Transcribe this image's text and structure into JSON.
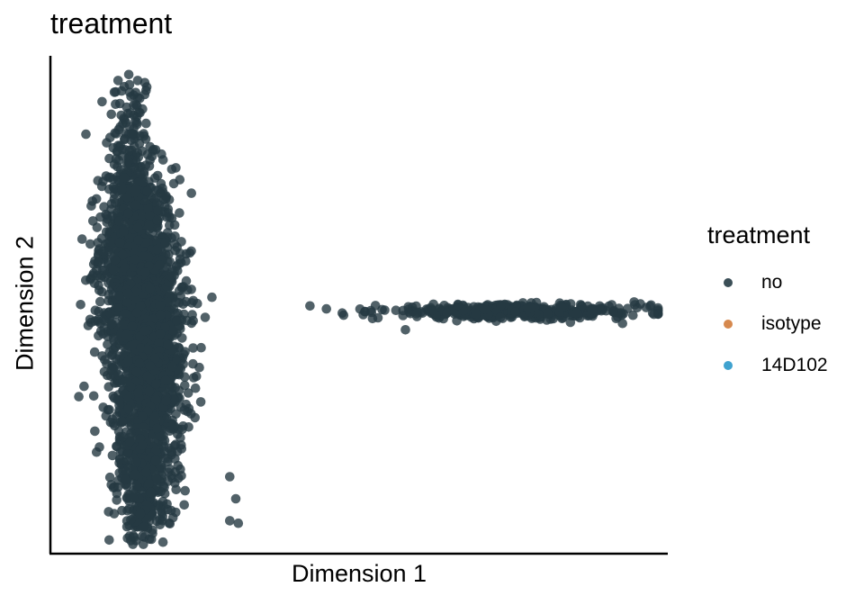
{
  "chart_data": {
    "type": "scatter",
    "title": "treatment",
    "xlabel": "Dimension 1",
    "ylabel": "Dimension 2",
    "xlim": [
      0,
      100
    ],
    "ylim": [
      0,
      100
    ],
    "grid": false,
    "axis_ticks": false,
    "point_color": "#263a42",
    "point_opacity": 0.8,
    "legend": {
      "title": "treatment",
      "placement": "right",
      "entries": [
        {
          "label": "no",
          "color": "#3b4f57"
        },
        {
          "label": "isotype",
          "color": "#d6894e"
        },
        {
          "label": "14D102",
          "color": "#3fa2cf"
        }
      ]
    },
    "series": [
      {
        "name": "no",
        "points": [
          [
            10.5,
            95.7
          ],
          [
            9.9,
            93.3
          ],
          [
            10.8,
            91.0
          ],
          [
            9.4,
            88.8
          ],
          [
            13.0,
            84.7
          ],
          [
            10.6,
            79.4
          ],
          [
            13.8,
            78.0
          ],
          [
            13.4,
            73.4
          ],
          [
            7.6,
            67.8
          ],
          [
            4.6,
            63.3
          ],
          [
            7.2,
            62.6
          ],
          [
            15.6,
            66.1
          ],
          [
            5.2,
            54.9
          ],
          [
            21.2,
            53.6
          ],
          [
            7.6,
            46.1
          ],
          [
            20.7,
            45.0
          ],
          [
            21.2,
            37.8
          ],
          [
            22.0,
            31.9
          ],
          [
            6.7,
            24.1
          ],
          [
            11.3,
            23.0
          ],
          [
            13.3,
            15.2
          ],
          [
            20.4,
            14.5
          ],
          [
            9.9,
            12.7
          ],
          [
            12.6,
            6.0
          ],
          [
            14.8,
            4.5
          ],
          [
            19.2,
            7.9
          ],
          [
            19.0,
            5.2
          ],
          [
            28.8,
            14.8
          ],
          [
            29.8,
            10.3
          ],
          [
            28.8,
            5.8
          ],
          [
            30.2,
            5.3
          ],
          [
            52.2,
            47.1
          ],
          [
            54.2,
            48.8
          ],
          [
            57.2,
            47.7
          ],
          [
            57.6,
            44.8
          ],
          [
            64.4,
            48.2
          ],
          [
            70.7,
            49.0
          ],
          [
            78.1,
            49.3
          ],
          [
            83.2,
            49.4
          ],
          [
            88.2,
            48.9
          ],
          [
            91.4,
            49.9
          ],
          [
            95.2,
            49.9
          ],
          [
            97.7,
            49.6
          ]
        ],
        "clusters": [
          {
            "center": [
              12.5,
              80
            ],
            "spread": [
              1.8,
              10
            ],
            "count": 160
          },
          {
            "center": [
              13.5,
              62
            ],
            "spread": [
              3.0,
              8
            ],
            "count": 650
          },
          {
            "center": [
              15.0,
              48
            ],
            "spread": [
              3.4,
              8
            ],
            "count": 750
          },
          {
            "center": [
              15.5,
              33
            ],
            "spread": [
              3.0,
              7
            ],
            "count": 600
          },
          {
            "center": [
              15.0,
              17
            ],
            "spread": [
              2.5,
              6
            ],
            "count": 300
          },
          {
            "center": [
              14.5,
              7
            ],
            "spread": [
              1.8,
              3
            ],
            "count": 90
          },
          {
            "center": [
              75,
              48.5
            ],
            "spread": [
              11,
              0.7
            ],
            "count": 420
          }
        ]
      }
    ]
  }
}
